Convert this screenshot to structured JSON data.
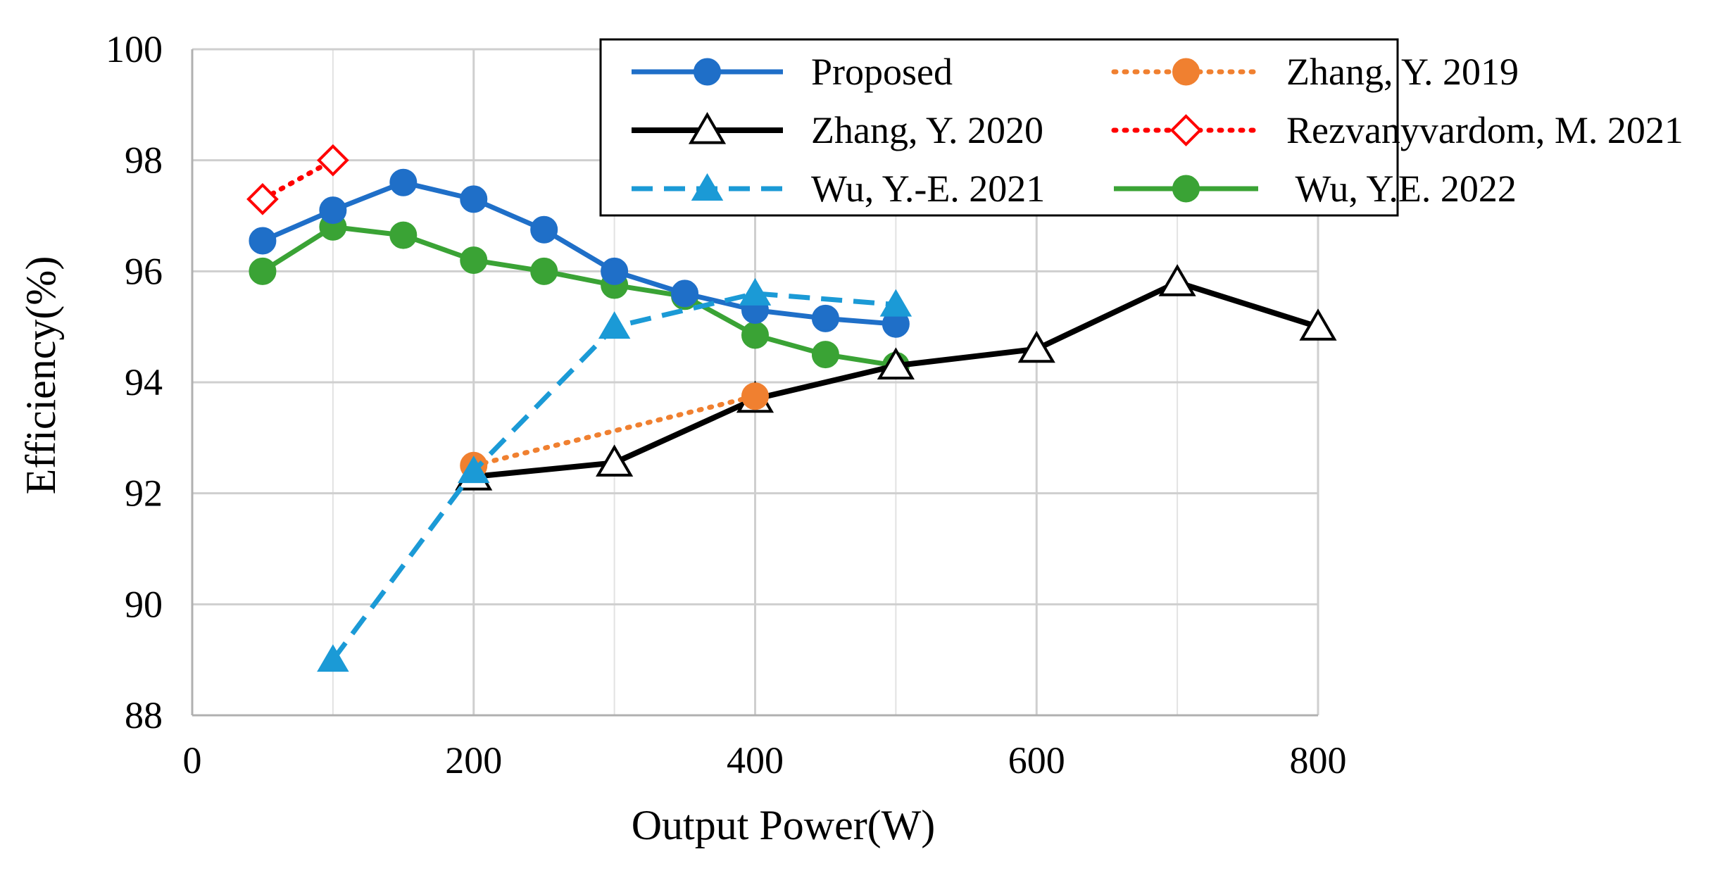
{
  "chart_data": {
    "type": "line",
    "title": "",
    "xlabel": "Output Power(W)",
    "ylabel": "Efficiency(%)",
    "xlim": [
      0,
      800
    ],
    "ylim": [
      88,
      100
    ],
    "xticks": [
      0,
      200,
      400,
      600,
      800
    ],
    "yticks": [
      88,
      90,
      92,
      94,
      96,
      98,
      100
    ],
    "grid": true,
    "legend_position": "top-right",
    "series": [
      {
        "name": "Proposed",
        "color": "#1f6fc8",
        "line_style": "solid",
        "marker": "circle-filled",
        "x": [
          50,
          100,
          150,
          200,
          250,
          300,
          350,
          400,
          450,
          500
        ],
        "y": [
          96.55,
          97.1,
          97.6,
          97.3,
          96.75,
          96.0,
          95.6,
          95.3,
          95.15,
          95.05
        ]
      },
      {
        "name": "Zhang, Y. 2020",
        "color": "#000000",
        "line_style": "solid",
        "marker": "triangle-open",
        "x": [
          200,
          300,
          400,
          500,
          600,
          700,
          800
        ],
        "y": [
          92.3,
          92.55,
          93.7,
          94.3,
          94.6,
          95.8,
          95.0
        ]
      },
      {
        "name": "Wu, Y.-E. 2021",
        "color": "#1b9ad6",
        "line_style": "dashed",
        "marker": "triangle-filled",
        "x": [
          100,
          200,
          300,
          400,
          500
        ],
        "y": [
          89.0,
          92.4,
          95.0,
          95.6,
          95.4
        ]
      },
      {
        "name": "Zhang, Y. 2019",
        "color": "#f08030",
        "line_style": "dotted",
        "marker": "circle-filled",
        "x": [
          200,
          400
        ],
        "y": [
          92.5,
          93.75
        ]
      },
      {
        "name": "Rezvanyvardom, M. 2021",
        "color": "#ff0000",
        "line_style": "dotted",
        "marker": "diamond-open",
        "x": [
          50,
          100
        ],
        "y": [
          97.3,
          98.0
        ]
      },
      {
        "name": " Wu, Y.E. 2022",
        "color": "#3aa335",
        "line_style": "solid",
        "marker": "circle-filled",
        "x": [
          50,
          100,
          150,
          200,
          250,
          300,
          350,
          400,
          450,
          500
        ],
        "y": [
          96.0,
          96.8,
          96.65,
          96.2,
          96.0,
          95.75,
          95.55,
          94.85,
          94.5,
          94.3
        ]
      }
    ]
  }
}
